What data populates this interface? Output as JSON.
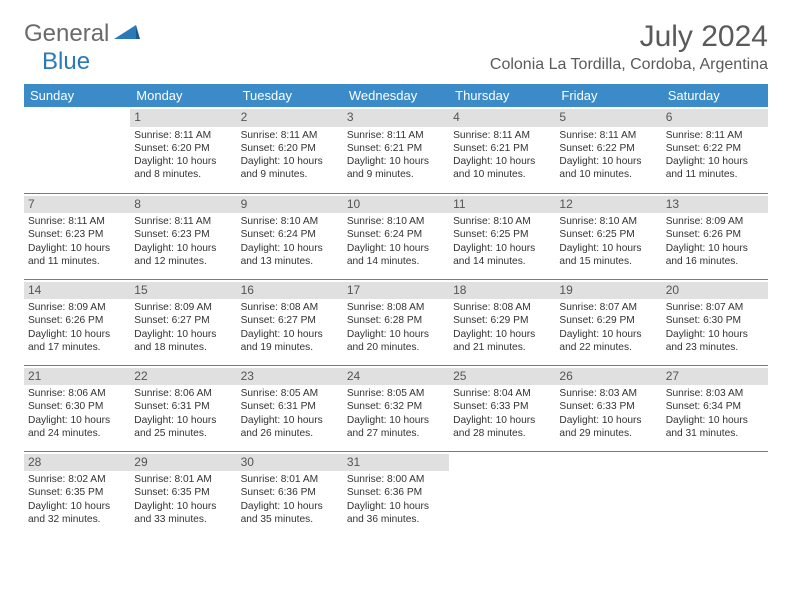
{
  "logo": {
    "text1": "General",
    "text2": "Blue",
    "text1_color": "#6a6a6a",
    "text2_color": "#2a7ab8"
  },
  "title": "July 2024",
  "location": "Colonia La Tordilla, Cordoba, Argentina",
  "colors": {
    "header_bg": "#3b8bc8",
    "header_text": "#ffffff",
    "daynum_bg": "#e0e0e0",
    "daynum_text": "#555555",
    "body_text": "#333333",
    "separator": "#3b8bc8"
  },
  "weekdays": [
    "Sunday",
    "Monday",
    "Tuesday",
    "Wednesday",
    "Thursday",
    "Friday",
    "Saturday"
  ],
  "weeks": [
    [
      {
        "day": "",
        "sunrise": "",
        "sunset": "",
        "daylight": ""
      },
      {
        "day": "1",
        "sunrise": "Sunrise: 8:11 AM",
        "sunset": "Sunset: 6:20 PM",
        "daylight": "Daylight: 10 hours and 8 minutes."
      },
      {
        "day": "2",
        "sunrise": "Sunrise: 8:11 AM",
        "sunset": "Sunset: 6:20 PM",
        "daylight": "Daylight: 10 hours and 9 minutes."
      },
      {
        "day": "3",
        "sunrise": "Sunrise: 8:11 AM",
        "sunset": "Sunset: 6:21 PM",
        "daylight": "Daylight: 10 hours and 9 minutes."
      },
      {
        "day": "4",
        "sunrise": "Sunrise: 8:11 AM",
        "sunset": "Sunset: 6:21 PM",
        "daylight": "Daylight: 10 hours and 10 minutes."
      },
      {
        "day": "5",
        "sunrise": "Sunrise: 8:11 AM",
        "sunset": "Sunset: 6:22 PM",
        "daylight": "Daylight: 10 hours and 10 minutes."
      },
      {
        "day": "6",
        "sunrise": "Sunrise: 8:11 AM",
        "sunset": "Sunset: 6:22 PM",
        "daylight": "Daylight: 10 hours and 11 minutes."
      }
    ],
    [
      {
        "day": "7",
        "sunrise": "Sunrise: 8:11 AM",
        "sunset": "Sunset: 6:23 PM",
        "daylight": "Daylight: 10 hours and 11 minutes."
      },
      {
        "day": "8",
        "sunrise": "Sunrise: 8:11 AM",
        "sunset": "Sunset: 6:23 PM",
        "daylight": "Daylight: 10 hours and 12 minutes."
      },
      {
        "day": "9",
        "sunrise": "Sunrise: 8:10 AM",
        "sunset": "Sunset: 6:24 PM",
        "daylight": "Daylight: 10 hours and 13 minutes."
      },
      {
        "day": "10",
        "sunrise": "Sunrise: 8:10 AM",
        "sunset": "Sunset: 6:24 PM",
        "daylight": "Daylight: 10 hours and 14 minutes."
      },
      {
        "day": "11",
        "sunrise": "Sunrise: 8:10 AM",
        "sunset": "Sunset: 6:25 PM",
        "daylight": "Daylight: 10 hours and 14 minutes."
      },
      {
        "day": "12",
        "sunrise": "Sunrise: 8:10 AM",
        "sunset": "Sunset: 6:25 PM",
        "daylight": "Daylight: 10 hours and 15 minutes."
      },
      {
        "day": "13",
        "sunrise": "Sunrise: 8:09 AM",
        "sunset": "Sunset: 6:26 PM",
        "daylight": "Daylight: 10 hours and 16 minutes."
      }
    ],
    [
      {
        "day": "14",
        "sunrise": "Sunrise: 8:09 AM",
        "sunset": "Sunset: 6:26 PM",
        "daylight": "Daylight: 10 hours and 17 minutes."
      },
      {
        "day": "15",
        "sunrise": "Sunrise: 8:09 AM",
        "sunset": "Sunset: 6:27 PM",
        "daylight": "Daylight: 10 hours and 18 minutes."
      },
      {
        "day": "16",
        "sunrise": "Sunrise: 8:08 AM",
        "sunset": "Sunset: 6:27 PM",
        "daylight": "Daylight: 10 hours and 19 minutes."
      },
      {
        "day": "17",
        "sunrise": "Sunrise: 8:08 AM",
        "sunset": "Sunset: 6:28 PM",
        "daylight": "Daylight: 10 hours and 20 minutes."
      },
      {
        "day": "18",
        "sunrise": "Sunrise: 8:08 AM",
        "sunset": "Sunset: 6:29 PM",
        "daylight": "Daylight: 10 hours and 21 minutes."
      },
      {
        "day": "19",
        "sunrise": "Sunrise: 8:07 AM",
        "sunset": "Sunset: 6:29 PM",
        "daylight": "Daylight: 10 hours and 22 minutes."
      },
      {
        "day": "20",
        "sunrise": "Sunrise: 8:07 AM",
        "sunset": "Sunset: 6:30 PM",
        "daylight": "Daylight: 10 hours and 23 minutes."
      }
    ],
    [
      {
        "day": "21",
        "sunrise": "Sunrise: 8:06 AM",
        "sunset": "Sunset: 6:30 PM",
        "daylight": "Daylight: 10 hours and 24 minutes."
      },
      {
        "day": "22",
        "sunrise": "Sunrise: 8:06 AM",
        "sunset": "Sunset: 6:31 PM",
        "daylight": "Daylight: 10 hours and 25 minutes."
      },
      {
        "day": "23",
        "sunrise": "Sunrise: 8:05 AM",
        "sunset": "Sunset: 6:31 PM",
        "daylight": "Daylight: 10 hours and 26 minutes."
      },
      {
        "day": "24",
        "sunrise": "Sunrise: 8:05 AM",
        "sunset": "Sunset: 6:32 PM",
        "daylight": "Daylight: 10 hours and 27 minutes."
      },
      {
        "day": "25",
        "sunrise": "Sunrise: 8:04 AM",
        "sunset": "Sunset: 6:33 PM",
        "daylight": "Daylight: 10 hours and 28 minutes."
      },
      {
        "day": "26",
        "sunrise": "Sunrise: 8:03 AM",
        "sunset": "Sunset: 6:33 PM",
        "daylight": "Daylight: 10 hours and 29 minutes."
      },
      {
        "day": "27",
        "sunrise": "Sunrise: 8:03 AM",
        "sunset": "Sunset: 6:34 PM",
        "daylight": "Daylight: 10 hours and 31 minutes."
      }
    ],
    [
      {
        "day": "28",
        "sunrise": "Sunrise: 8:02 AM",
        "sunset": "Sunset: 6:35 PM",
        "daylight": "Daylight: 10 hours and 32 minutes."
      },
      {
        "day": "29",
        "sunrise": "Sunrise: 8:01 AM",
        "sunset": "Sunset: 6:35 PM",
        "daylight": "Daylight: 10 hours and 33 minutes."
      },
      {
        "day": "30",
        "sunrise": "Sunrise: 8:01 AM",
        "sunset": "Sunset: 6:36 PM",
        "daylight": "Daylight: 10 hours and 35 minutes."
      },
      {
        "day": "31",
        "sunrise": "Sunrise: 8:00 AM",
        "sunset": "Sunset: 6:36 PM",
        "daylight": "Daylight: 10 hours and 36 minutes."
      },
      {
        "day": "",
        "sunrise": "",
        "sunset": "",
        "daylight": ""
      },
      {
        "day": "",
        "sunrise": "",
        "sunset": "",
        "daylight": ""
      },
      {
        "day": "",
        "sunrise": "",
        "sunset": "",
        "daylight": ""
      }
    ]
  ]
}
